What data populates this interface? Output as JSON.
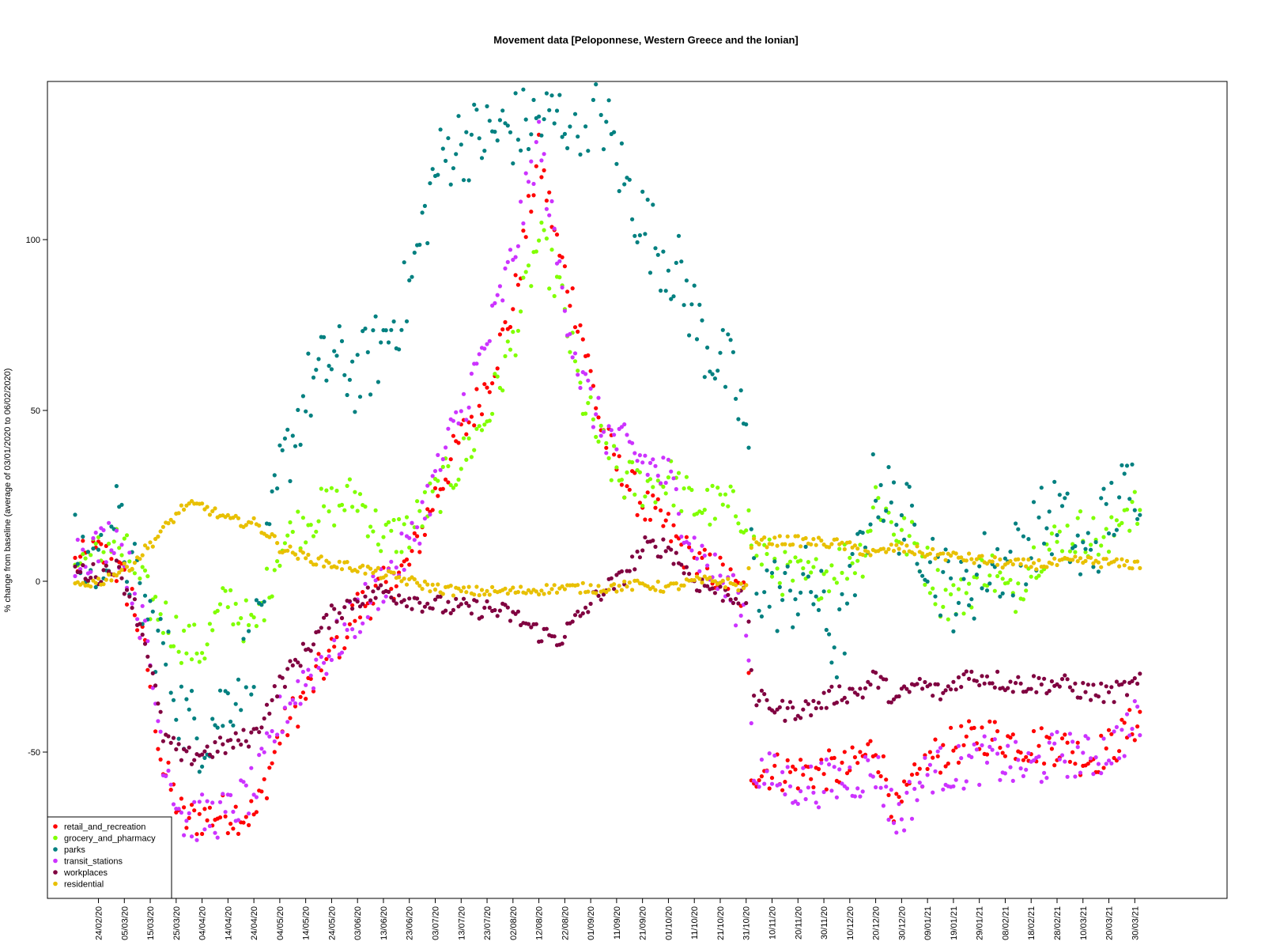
{
  "chart_data": {
    "type": "scatter",
    "title": "Movement data [Peloponnese, Western Greece and the Ionian]",
    "xlabel": "",
    "ylabel": "% change from baseline (average of 03/01/2020 to 06/02/2020)",
    "y_ticks": [
      -50,
      0,
      50,
      100
    ],
    "ylim": [
      -93,
      145
    ],
    "x_start_date": "2020-02-15",
    "x_end_date": "2021-04-01",
    "x_tick_labels": [
      "24/02/20",
      "05/03/20",
      "15/03/20",
      "25/03/20",
      "04/04/20",
      "14/04/20",
      "24/04/20",
      "04/05/20",
      "14/05/20",
      "24/05/20",
      "03/06/20",
      "13/06/20",
      "23/06/20",
      "03/07/20",
      "13/07/20",
      "23/07/20",
      "02/08/20",
      "12/08/20",
      "22/08/20",
      "01/09/20",
      "11/09/20",
      "21/09/20",
      "01/10/20",
      "11/10/20",
      "21/10/20",
      "31/10/20",
      "10/11/20",
      "20/11/20",
      "30/11/20",
      "10/12/20",
      "20/12/20",
      "30/12/20",
      "09/01/21",
      "19/01/21",
      "29/01/21",
      "08/02/21",
      "18/02/21",
      "28/02/21",
      "10/03/21",
      "20/03/21",
      "30/03/21"
    ],
    "legend_position": "bottom-left",
    "grid": false,
    "series": [
      {
        "name": "retail_and_recreation",
        "color": "#ff0000",
        "anchors": [
          [
            "2020-02-15",
            5
          ],
          [
            "2020-02-25",
            8
          ],
          [
            "2020-03-01",
            5
          ],
          [
            "2020-03-08",
            -5
          ],
          [
            "2020-03-14",
            -25
          ],
          [
            "2020-03-20",
            -55
          ],
          [
            "2020-03-28",
            -70
          ],
          [
            "2020-04-12",
            -68
          ],
          [
            "2020-04-25",
            -68
          ],
          [
            "2020-05-04",
            -45
          ],
          [
            "2020-05-15",
            -32
          ],
          [
            "2020-05-25",
            -20
          ],
          [
            "2020-06-03",
            -8
          ],
          [
            "2020-06-13",
            -2
          ],
          [
            "2020-06-23",
            5
          ],
          [
            "2020-07-03",
            25
          ],
          [
            "2020-07-13",
            42
          ],
          [
            "2020-07-23",
            58
          ],
          [
            "2020-08-02",
            80
          ],
          [
            "2020-08-12",
            125
          ],
          [
            "2020-08-20",
            95
          ],
          [
            "2020-08-28",
            75
          ],
          [
            "2020-09-05",
            45
          ],
          [
            "2020-09-12",
            32
          ],
          [
            "2020-09-22",
            22
          ],
          [
            "2020-10-01",
            15
          ],
          [
            "2020-10-11",
            5
          ],
          [
            "2020-10-21",
            2
          ],
          [
            "2020-10-31",
            -5
          ],
          [
            "2020-11-02",
            -55
          ],
          [
            "2020-11-20",
            -56
          ],
          [
            "2020-12-10",
            -55
          ],
          [
            "2020-12-20",
            -48
          ],
          [
            "2020-12-28",
            -68
          ],
          [
            "2021-01-10",
            -52
          ],
          [
            "2021-01-20",
            -48
          ],
          [
            "2021-02-01",
            -45
          ],
          [
            "2021-02-18",
            -48
          ],
          [
            "2021-03-01",
            -48
          ],
          [
            "2021-03-12",
            -52
          ],
          [
            "2021-03-22",
            -48
          ],
          [
            "2021-04-01",
            -40
          ]
        ],
        "noise": 6
      },
      {
        "name": "grocery_and_pharmacy",
        "color": "#80ff00",
        "anchors": [
          [
            "2020-02-15",
            5
          ],
          [
            "2020-02-25",
            8
          ],
          [
            "2020-03-01",
            12
          ],
          [
            "2020-03-08",
            5
          ],
          [
            "2020-03-14",
            -5
          ],
          [
            "2020-03-20",
            -10
          ],
          [
            "2020-03-28",
            -18
          ],
          [
            "2020-04-04",
            -20
          ],
          [
            "2020-04-14",
            -5
          ],
          [
            "2020-04-24",
            -15
          ],
          [
            "2020-05-04",
            10
          ],
          [
            "2020-05-14",
            18
          ],
          [
            "2020-05-24",
            22
          ],
          [
            "2020-06-03",
            25
          ],
          [
            "2020-06-13",
            12
          ],
          [
            "2020-06-23",
            15
          ],
          [
            "2020-07-03",
            25
          ],
          [
            "2020-07-13",
            35
          ],
          [
            "2020-07-23",
            48
          ],
          [
            "2020-08-02",
            70
          ],
          [
            "2020-08-12",
            100
          ],
          [
            "2020-08-20",
            85
          ],
          [
            "2020-08-28",
            55
          ],
          [
            "2020-09-05",
            40
          ],
          [
            "2020-09-12",
            30
          ],
          [
            "2020-09-22",
            28
          ],
          [
            "2020-10-01",
            30
          ],
          [
            "2020-10-11",
            22
          ],
          [
            "2020-10-21",
            22
          ],
          [
            "2020-10-31",
            20
          ],
          [
            "2020-11-03",
            10
          ],
          [
            "2020-11-15",
            2
          ],
          [
            "2020-11-25",
            0
          ],
          [
            "2020-12-05",
            5
          ],
          [
            "2020-12-15",
            8
          ],
          [
            "2020-12-20",
            25
          ],
          [
            "2020-12-28",
            15
          ],
          [
            "2021-01-05",
            10
          ],
          [
            "2021-01-15",
            -5
          ],
          [
            "2021-01-22",
            -5
          ],
          [
            "2021-02-01",
            5
          ],
          [
            "2021-02-10",
            -5
          ],
          [
            "2021-02-20",
            8
          ],
          [
            "2021-03-01",
            12
          ],
          [
            "2021-03-10",
            15
          ],
          [
            "2021-03-20",
            10
          ],
          [
            "2021-03-25",
            22
          ],
          [
            "2021-04-01",
            20
          ]
        ],
        "noise": 7
      },
      {
        "name": "parks",
        "color": "#008080",
        "anchors": [
          [
            "2020-02-15",
            8
          ],
          [
            "2020-02-25",
            5
          ],
          [
            "2020-03-01",
            20
          ],
          [
            "2020-03-08",
            2
          ],
          [
            "2020-03-14",
            -10
          ],
          [
            "2020-03-20",
            -20
          ],
          [
            "2020-03-28",
            -40
          ],
          [
            "2020-04-04",
            -45
          ],
          [
            "2020-04-14",
            -35
          ],
          [
            "2020-04-24",
            -20
          ],
          [
            "2020-05-04",
            30
          ],
          [
            "2020-05-14",
            55
          ],
          [
            "2020-05-24",
            65
          ],
          [
            "2020-06-03",
            60
          ],
          [
            "2020-06-13",
            70
          ],
          [
            "2020-06-23",
            85
          ],
          [
            "2020-07-03",
            120
          ],
          [
            "2020-07-10",
            128
          ],
          [
            "2020-08-15",
            135
          ],
          [
            "2020-09-05",
            138
          ],
          [
            "2020-09-15",
            115
          ],
          [
            "2020-09-25",
            100
          ],
          [
            "2020-10-05",
            90
          ],
          [
            "2020-10-15",
            70
          ],
          [
            "2020-10-25",
            60
          ],
          [
            "2020-10-31",
            45
          ],
          [
            "2020-11-03",
            0
          ],
          [
            "2020-11-15",
            -5
          ],
          [
            "2020-11-25",
            0
          ],
          [
            "2020-12-05",
            -20
          ],
          [
            "2020-12-15",
            10
          ],
          [
            "2020-12-20",
            30
          ],
          [
            "2020-12-28",
            20
          ],
          [
            "2021-01-05",
            15
          ],
          [
            "2021-01-15",
            0
          ],
          [
            "2021-01-22",
            -5
          ],
          [
            "2021-02-01",
            5
          ],
          [
            "2021-02-10",
            5
          ],
          [
            "2021-02-20",
            15
          ],
          [
            "2021-03-01",
            20
          ],
          [
            "2021-03-10",
            5
          ],
          [
            "2021-03-20",
            20
          ],
          [
            "2021-04-01",
            30
          ]
        ],
        "noise": 12
      },
      {
        "name": "transit_stations",
        "color": "#cc33ff",
        "anchors": [
          [
            "2020-02-15",
            8
          ],
          [
            "2020-02-25",
            10
          ],
          [
            "2020-03-01",
            15
          ],
          [
            "2020-03-08",
            0
          ],
          [
            "2020-03-14",
            -20
          ],
          [
            "2020-03-20",
            -50
          ],
          [
            "2020-03-28",
            -70
          ],
          [
            "2020-04-14",
            -68
          ],
          [
            "2020-04-25",
            -60
          ],
          [
            "2020-05-04",
            -40
          ],
          [
            "2020-05-14",
            -28
          ],
          [
            "2020-05-24",
            -20
          ],
          [
            "2020-06-03",
            -10
          ],
          [
            "2020-06-13",
            0
          ],
          [
            "2020-06-23",
            10
          ],
          [
            "2020-07-03",
            30
          ],
          [
            "2020-07-13",
            50
          ],
          [
            "2020-07-23",
            70
          ],
          [
            "2020-08-02",
            95
          ],
          [
            "2020-08-12",
            130
          ],
          [
            "2020-08-20",
            90
          ],
          [
            "2020-08-28",
            60
          ],
          [
            "2020-09-05",
            45
          ],
          [
            "2020-09-12",
            40
          ],
          [
            "2020-09-22",
            35
          ],
          [
            "2020-10-01",
            30
          ],
          [
            "2020-10-11",
            10
          ],
          [
            "2020-10-21",
            0
          ],
          [
            "2020-10-31",
            -10
          ],
          [
            "2020-11-03",
            -55
          ],
          [
            "2020-11-20",
            -60
          ],
          [
            "2020-12-10",
            -58
          ],
          [
            "2020-12-20",
            -55
          ],
          [
            "2020-12-28",
            -70
          ],
          [
            "2021-01-10",
            -55
          ],
          [
            "2021-01-20",
            -55
          ],
          [
            "2021-02-01",
            -52
          ],
          [
            "2021-02-18",
            -55
          ],
          [
            "2021-03-01",
            -50
          ],
          [
            "2021-03-12",
            -52
          ],
          [
            "2021-03-22",
            -48
          ],
          [
            "2021-04-01",
            -40
          ]
        ],
        "noise": 7
      },
      {
        "name": "workplaces",
        "color": "#800040",
        "anchors": [
          [
            "2020-02-15",
            3
          ],
          [
            "2020-02-25",
            2
          ],
          [
            "2020-03-01",
            5
          ],
          [
            "2020-03-08",
            -5
          ],
          [
            "2020-03-14",
            -20
          ],
          [
            "2020-03-20",
            -45
          ],
          [
            "2020-03-28",
            -52
          ],
          [
            "2020-04-04",
            -50
          ],
          [
            "2020-04-14",
            -48
          ],
          [
            "2020-04-24",
            -45
          ],
          [
            "2020-05-04",
            -30
          ],
          [
            "2020-05-14",
            -20
          ],
          [
            "2020-05-24",
            -10
          ],
          [
            "2020-06-03",
            -5
          ],
          [
            "2020-06-13",
            -3
          ],
          [
            "2020-06-23",
            -5
          ],
          [
            "2020-07-03",
            -7
          ],
          [
            "2020-07-13",
            -8
          ],
          [
            "2020-07-23",
            -8
          ],
          [
            "2020-08-02",
            -10
          ],
          [
            "2020-08-12",
            -15
          ],
          [
            "2020-08-20",
            -17
          ],
          [
            "2020-08-28",
            -10
          ],
          [
            "2020-09-05",
            -3
          ],
          [
            "2020-09-12",
            0
          ],
          [
            "2020-09-22",
            10
          ],
          [
            "2020-10-01",
            10
          ],
          [
            "2020-10-11",
            0
          ],
          [
            "2020-10-21",
            -3
          ],
          [
            "2020-10-31",
            -5
          ],
          [
            "2020-11-03",
            -34
          ],
          [
            "2020-11-15",
            -38
          ],
          [
            "2020-11-25",
            -37
          ],
          [
            "2020-12-05",
            -33
          ],
          [
            "2020-12-15",
            -32
          ],
          [
            "2020-12-20",
            -28
          ],
          [
            "2020-12-28",
            -35
          ],
          [
            "2021-01-05",
            -30
          ],
          [
            "2021-01-15",
            -33
          ],
          [
            "2021-01-22",
            -28
          ],
          [
            "2021-02-01",
            -28
          ],
          [
            "2021-02-10",
            -30
          ],
          [
            "2021-02-20",
            -30
          ],
          [
            "2021-03-01",
            -30
          ],
          [
            "2021-03-10",
            -32
          ],
          [
            "2021-03-20",
            -33
          ],
          [
            "2021-04-01",
            -30
          ]
        ],
        "noise": 3
      },
      {
        "name": "residential",
        "color": "#e8c000",
        "anchors": [
          [
            "2020-02-15",
            -1
          ],
          [
            "2020-02-25",
            0
          ],
          [
            "2020-03-01",
            2
          ],
          [
            "2020-03-08",
            5
          ],
          [
            "2020-03-14",
            10
          ],
          [
            "2020-03-20",
            15
          ],
          [
            "2020-03-28",
            22
          ],
          [
            "2020-04-04",
            22
          ],
          [
            "2020-04-14",
            18
          ],
          [
            "2020-04-24",
            17
          ],
          [
            "2020-05-01",
            13
          ],
          [
            "2020-05-04",
            10
          ],
          [
            "2020-05-14",
            7
          ],
          [
            "2020-05-24",
            5
          ],
          [
            "2020-06-03",
            4
          ],
          [
            "2020-06-13",
            2
          ],
          [
            "2020-06-23",
            0
          ],
          [
            "2020-07-03",
            -2
          ],
          [
            "2020-07-13",
            -3
          ],
          [
            "2020-08-02",
            -3
          ],
          [
            "2020-08-20",
            -2
          ],
          [
            "2020-09-05",
            -2
          ],
          [
            "2020-09-22",
            -1
          ],
          [
            "2020-10-01",
            -2
          ],
          [
            "2020-10-11",
            0
          ],
          [
            "2020-10-21",
            0
          ],
          [
            "2020-10-31",
            -2
          ],
          [
            "2020-11-02",
            11
          ],
          [
            "2020-11-15",
            12
          ],
          [
            "2020-12-05",
            11
          ],
          [
            "2020-12-20",
            8
          ],
          [
            "2020-12-28",
            10
          ],
          [
            "2021-01-10",
            8
          ],
          [
            "2021-01-22",
            7
          ],
          [
            "2021-02-10",
            5
          ],
          [
            "2021-02-25",
            5
          ],
          [
            "2021-03-10",
            6
          ],
          [
            "2021-03-25",
            5
          ],
          [
            "2021-04-01",
            5
          ]
        ],
        "noise": 1.5
      }
    ]
  }
}
